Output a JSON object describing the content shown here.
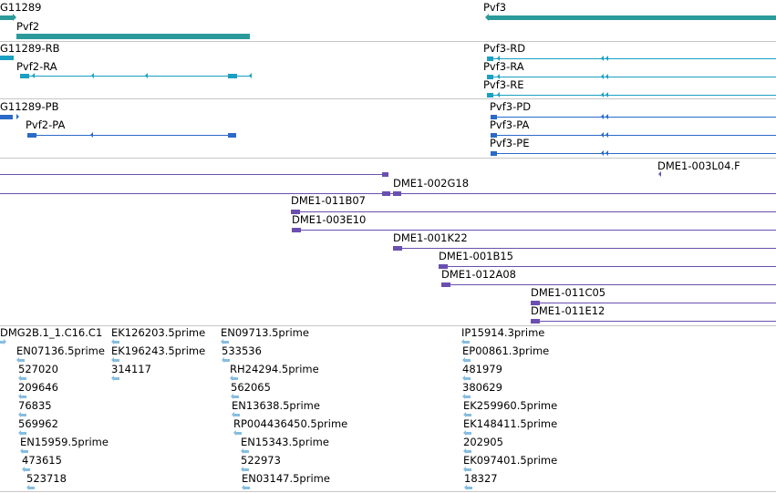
{
  "colors": {
    "gene": "#2b9a9a",
    "transcript_rna": "#1aa0c2",
    "transcript_protein": "#2b6ac7",
    "clone": "#6a4fb0",
    "est": "#86bde0",
    "separator": "#c6c6c6"
  },
  "genes": [
    {
      "label": "G11289"
    },
    {
      "label": "Pvf2"
    },
    {
      "label": "Pvf3"
    }
  ],
  "transcripts": [
    {
      "label": "G11289-RB"
    },
    {
      "label": "Pvf2-RA"
    },
    {
      "label": "Pvf3-RD"
    },
    {
      "label": "Pvf3-RA"
    },
    {
      "label": "Pvf3-RE"
    }
  ],
  "proteins": [
    {
      "label": "G11289-PB"
    },
    {
      "label": "Pvf2-PA"
    },
    {
      "label": "Pvf3-PD"
    },
    {
      "label": "Pvf3-PA"
    },
    {
      "label": "Pvf3-PE"
    }
  ],
  "clones": [
    {
      "label": "DME1-003L04.F"
    },
    {
      "label": "DME1-002G18"
    },
    {
      "label": "DME1-011B07"
    },
    {
      "label": "DME1-003E10"
    },
    {
      "label": "DME1-001K22"
    },
    {
      "label": "DME1-001B15"
    },
    {
      "label": "DME1-012A08"
    },
    {
      "label": "DME1-011C05"
    },
    {
      "label": "DME1-011E12"
    }
  ],
  "ests": [
    {
      "label": "DMG2B.1_1.C16.C1"
    },
    {
      "label": "EN07136.5prime"
    },
    {
      "label": "527020"
    },
    {
      "label": "209646"
    },
    {
      "label": "76835"
    },
    {
      "label": "569962"
    },
    {
      "label": "EN15959.5prime"
    },
    {
      "label": "473615"
    },
    {
      "label": "523718"
    },
    {
      "label": "EK126203.5prime"
    },
    {
      "label": "EK196243.5prime"
    },
    {
      "label": "314117"
    },
    {
      "label": "EN09713.5prime"
    },
    {
      "label": "533536"
    },
    {
      "label": "RH24294.5prime"
    },
    {
      "label": "562065"
    },
    {
      "label": "EN13638.5prime"
    },
    {
      "label": "RP004436450.5prime"
    },
    {
      "label": "EN15343.5prime"
    },
    {
      "label": "522973"
    },
    {
      "label": "EN03147.5prime"
    },
    {
      "label": "IP15914.3prime"
    },
    {
      "label": "EP00861.3prime"
    },
    {
      "label": "481979"
    },
    {
      "label": "380629"
    },
    {
      "label": "EK259960.5prime"
    },
    {
      "label": "EK148411.5prime"
    },
    {
      "label": "202905"
    },
    {
      "label": "EK097401.5prime"
    },
    {
      "label": "18327"
    }
  ]
}
